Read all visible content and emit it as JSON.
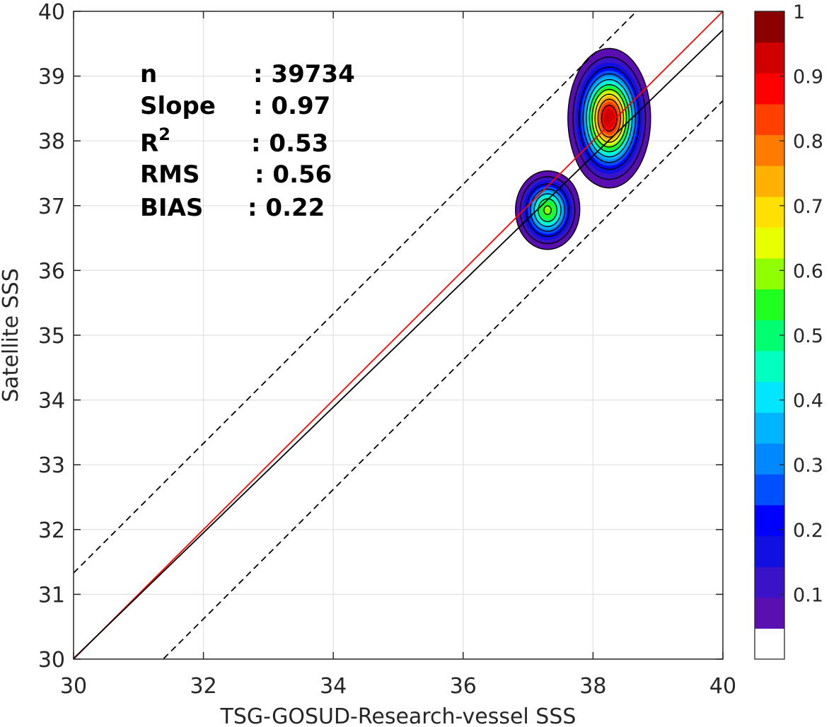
{
  "chart_data": {
    "type": "density-contour-scatter",
    "xlabel": "TSG-GOSUD-Research-vessel SSS",
    "ylabel": "Satellite SSS",
    "xlim": [
      30,
      40
    ],
    "ylim": [
      30,
      40
    ],
    "xticks": [
      "30",
      "32",
      "34",
      "36",
      "38",
      "40"
    ],
    "yticks": [
      "30",
      "31",
      "32",
      "33",
      "34",
      "35",
      "36",
      "37",
      "38",
      "39",
      "40"
    ],
    "grid": true,
    "stats": [
      {
        "label": "n",
        "value": ": 39734"
      },
      {
        "label": "Slope",
        "value": ": 0.97"
      },
      {
        "label": "R",
        "sup": "2",
        "value": ": 0.53"
      },
      {
        "label": "RMS",
        "value": ": 0.56"
      },
      {
        "label": "BIAS",
        "value": ": 0.22"
      }
    ],
    "lines": [
      {
        "kind": "one-to-one",
        "color": "#ff0000",
        "slope": 1.0,
        "intercept": 0.0
      },
      {
        "kind": "regression",
        "color": "#000000",
        "slope": 0.97,
        "intercept": 0.91
      },
      {
        "kind": "upper-bound",
        "color": "#000000",
        "style": "dashed",
        "slope": 1.0,
        "intercept": 1.33
      },
      {
        "kind": "lower-bound",
        "color": "#000000",
        "style": "dashed",
        "slope": 1.0,
        "intercept": -1.38
      }
    ],
    "density_peaks": [
      {
        "x": 38.25,
        "y": 38.35,
        "peak": 1.0,
        "sx": 0.26,
        "sy": 0.44
      },
      {
        "x": 37.3,
        "y": 36.93,
        "peak": 0.62,
        "sx": 0.22,
        "sy": 0.27
      }
    ],
    "colorbar": {
      "range": [
        0,
        1
      ],
      "levels": 20,
      "ticks": [
        "0.1",
        "0.2",
        "0.3",
        "0.4",
        "0.5",
        "0.6",
        "0.7",
        "0.8",
        "0.9",
        "1"
      ],
      "colors": [
        "#ffffff",
        "#5a0fb0",
        "#3a13c8",
        "#1010e0",
        "#0000ff",
        "#0050ff",
        "#0088ff",
        "#00b4ff",
        "#00e6ff",
        "#00ffc0",
        "#00ff70",
        "#20ff20",
        "#90ff00",
        "#e8ff00",
        "#ffe000",
        "#ffb000",
        "#ff7a00",
        "#ff4000",
        "#ff0000",
        "#d00000",
        "#8b0000"
      ]
    }
  }
}
